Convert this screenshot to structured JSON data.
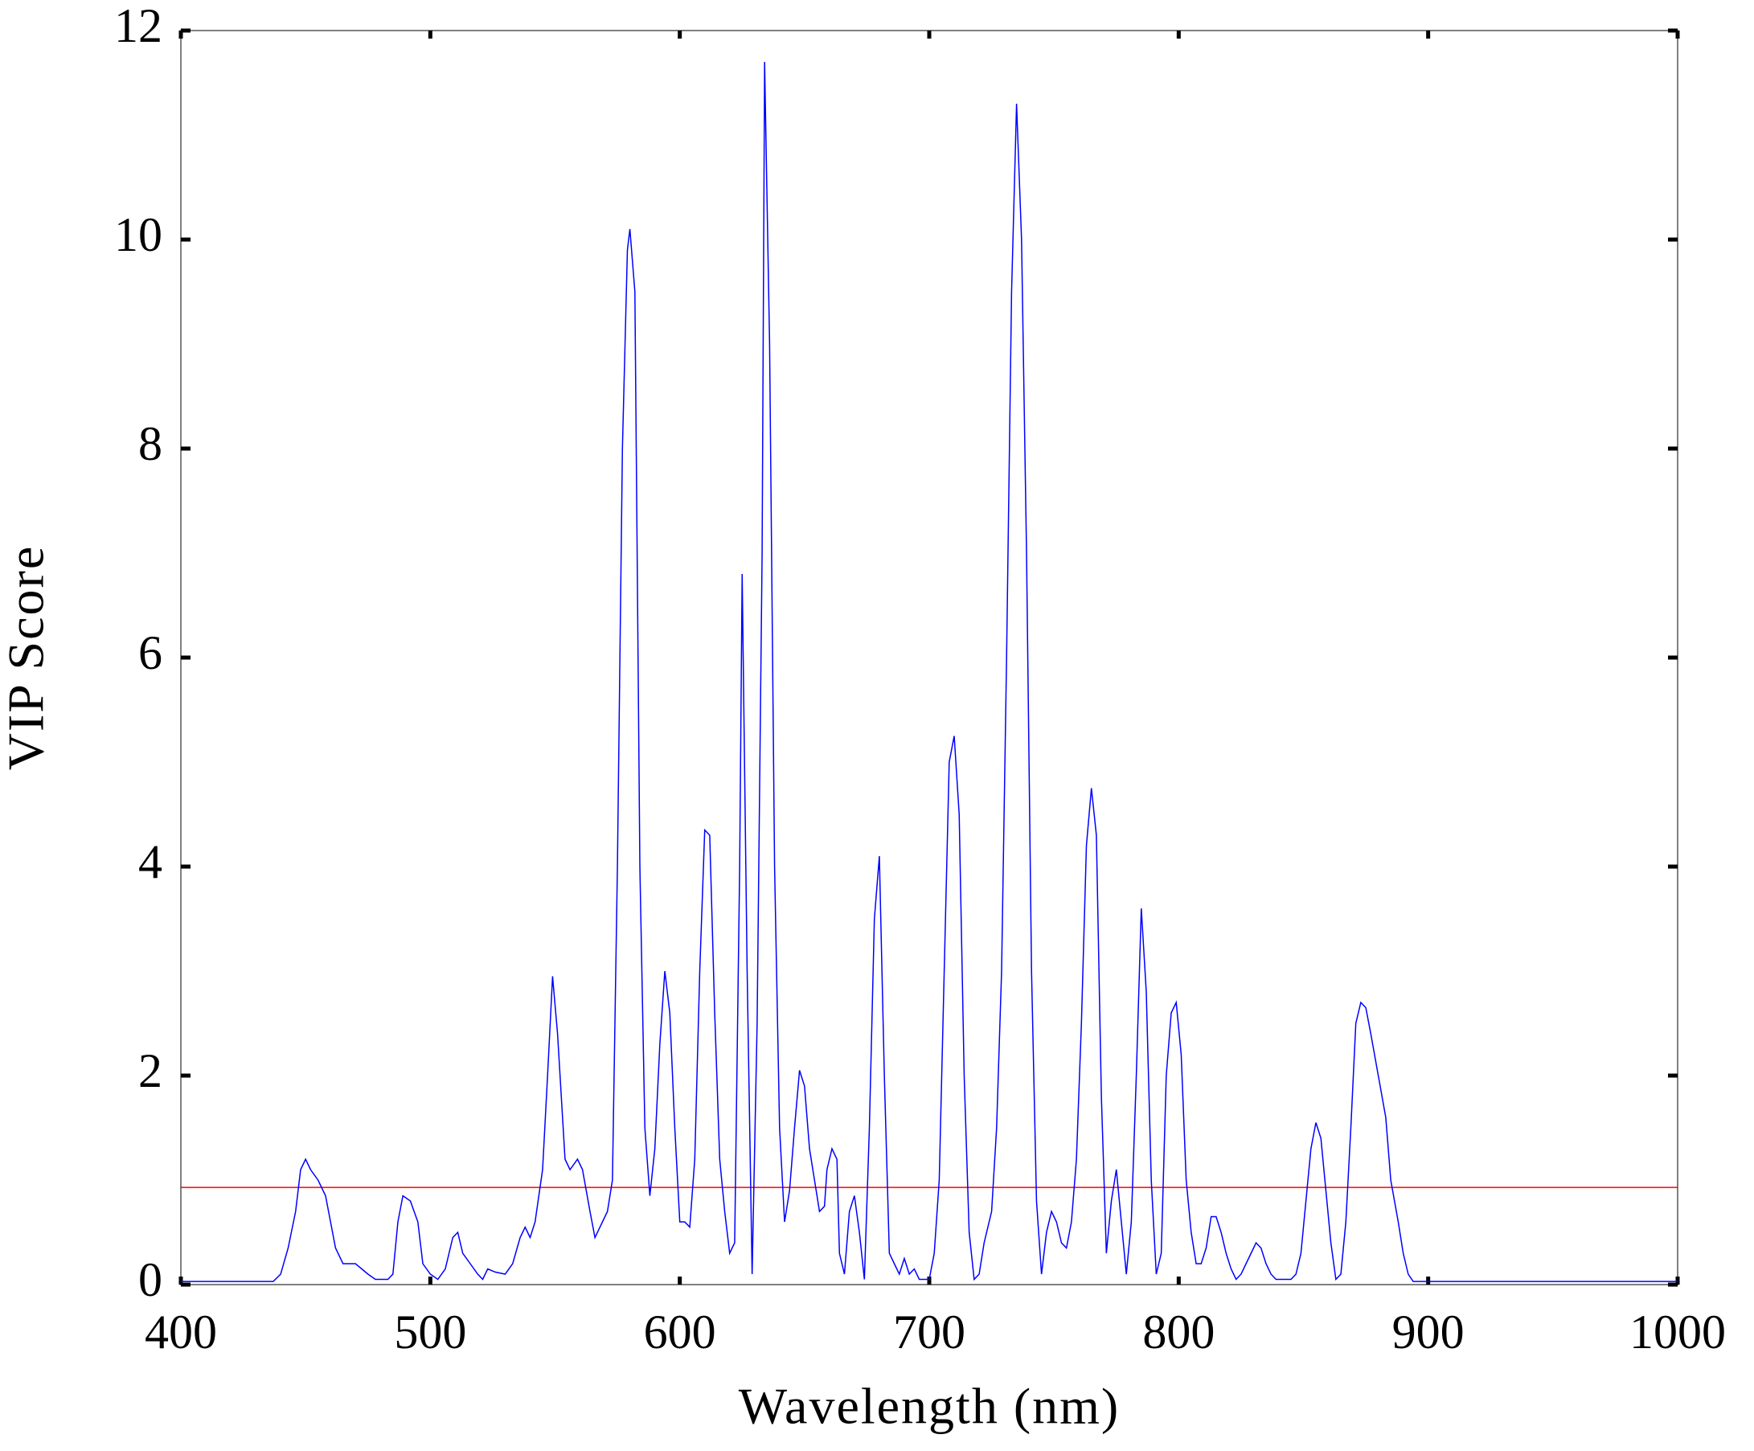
{
  "chart_data": {
    "type": "line",
    "x_label": "Wavelength (nm)",
    "y_label": "VIP Score",
    "xlim": [
      400,
      1000
    ],
    "xticks": [
      400,
      500,
      600,
      700,
      800,
      900,
      1000
    ],
    "ylim": [
      0,
      12
    ],
    "yticks": [
      0,
      2,
      4,
      6,
      8,
      10,
      12
    ],
    "reference_line": {
      "value": 0.93,
      "color": "#ff0000"
    },
    "x": [
      400,
      437,
      440,
      443,
      446,
      448,
      450,
      452,
      455,
      458,
      460,
      462,
      465,
      470,
      475,
      478,
      483,
      485,
      487,
      489,
      492,
      495,
      497,
      500,
      503,
      506,
      509,
      511,
      513,
      516,
      519,
      521,
      523,
      526,
      530,
      533,
      536,
      538,
      540,
      542,
      545,
      547,
      549,
      551,
      553,
      554,
      556,
      559,
      561,
      564,
      566,
      569,
      571,
      573,
      575,
      577,
      579,
      580,
      582,
      584,
      586,
      588,
      590,
      592,
      594,
      596,
      598,
      600,
      602,
      604,
      606,
      608,
      610,
      612,
      614,
      616,
      618,
      620,
      622,
      624,
      625,
      627,
      629,
      631,
      633,
      634,
      636,
      638,
      640,
      642,
      644,
      646,
      648,
      650,
      652,
      654,
      656,
      658,
      659,
      661,
      663,
      664,
      666,
      668,
      670,
      672,
      674,
      676,
      678,
      680,
      682,
      684,
      686,
      688,
      690,
      692,
      694,
      696,
      700,
      702,
      704,
      706,
      708,
      710,
      712,
      714,
      716,
      718,
      720,
      722,
      725,
      727,
      729,
      731,
      733,
      735,
      737,
      739,
      741,
      743,
      745,
      747,
      749,
      751,
      753,
      755,
      757,
      759,
      761,
      763,
      765,
      767,
      769,
      771,
      773,
      775,
      777,
      779,
      781,
      783,
      785,
      787,
      789,
      791,
      793,
      795,
      797,
      799,
      801,
      803,
      805,
      807,
      809,
      811,
      813,
      815,
      817,
      819,
      821,
      823,
      825,
      827,
      829,
      831,
      833,
      835,
      837,
      839,
      845,
      847,
      849,
      851,
      853,
      855,
      857,
      859,
      861,
      863,
      865,
      867,
      869,
      871,
      873,
      875,
      877,
      880,
      883,
      885,
      888,
      890,
      892,
      894,
      1000
    ],
    "series": [
      {
        "color": "#0000ff",
        "values": [
          0.03,
          0.03,
          0.1,
          0.35,
          0.7,
          1.1,
          1.2,
          1.1,
          1.0,
          0.85,
          0.6,
          0.35,
          0.2,
          0.2,
          0.1,
          0.05,
          0.05,
          0.1,
          0.6,
          0.85,
          0.8,
          0.6,
          0.2,
          0.1,
          0.05,
          0.15,
          0.45,
          0.5,
          0.3,
          0.2,
          0.1,
          0.05,
          0.15,
          0.12,
          0.1,
          0.2,
          0.45,
          0.55,
          0.45,
          0.6,
          1.1,
          2.0,
          2.95,
          2.4,
          1.6,
          1.2,
          1.1,
          1.2,
          1.1,
          0.7,
          0.45,
          0.6,
          0.7,
          1.0,
          4.0,
          8.0,
          9.9,
          10.1,
          9.5,
          4.0,
          1.5,
          0.85,
          1.3,
          2.3,
          3.0,
          2.6,
          1.5,
          0.6,
          0.6,
          0.55,
          1.2,
          3.0,
          4.35,
          4.3,
          2.6,
          1.2,
          0.7,
          0.3,
          0.4,
          4.0,
          6.8,
          3.0,
          0.1,
          2.5,
          7.0,
          11.7,
          9.0,
          4.0,
          1.5,
          0.6,
          0.9,
          1.5,
          2.05,
          1.9,
          1.3,
          1.0,
          0.7,
          0.75,
          1.1,
          1.3,
          1.2,
          0.3,
          0.1,
          0.7,
          0.85,
          0.5,
          0.05,
          1.5,
          3.5,
          4.1,
          2.0,
          0.3,
          0.2,
          0.1,
          0.25,
          0.1,
          0.15,
          0.05,
          0.05,
          0.3,
          1.0,
          3.0,
          5.0,
          5.25,
          4.5,
          2.0,
          0.5,
          0.05,
          0.1,
          0.4,
          0.7,
          1.5,
          3.0,
          6.0,
          9.5,
          11.3,
          10.0,
          7.0,
          3.0,
          0.8,
          0.1,
          0.5,
          0.7,
          0.6,
          0.4,
          0.35,
          0.6,
          1.2,
          2.5,
          4.2,
          4.75,
          4.3,
          1.8,
          0.3,
          0.8,
          1.1,
          0.6,
          0.1,
          0.6,
          2.0,
          3.6,
          2.8,
          1.0,
          0.1,
          0.3,
          2.0,
          2.6,
          2.7,
          2.2,
          1.0,
          0.5,
          0.2,
          0.2,
          0.35,
          0.65,
          0.65,
          0.5,
          0.3,
          0.15,
          0.05,
          0.1,
          0.2,
          0.3,
          0.4,
          0.35,
          0.2,
          0.1,
          0.05,
          0.05,
          0.1,
          0.3,
          0.8,
          1.3,
          1.55,
          1.4,
          0.9,
          0.4,
          0.05,
          0.1,
          0.6,
          1.5,
          2.5,
          2.7,
          2.65,
          2.4,
          2.0,
          1.6,
          1.0,
          0.6,
          0.3,
          0.1,
          0.03,
          0.03
        ]
      }
    ]
  }
}
